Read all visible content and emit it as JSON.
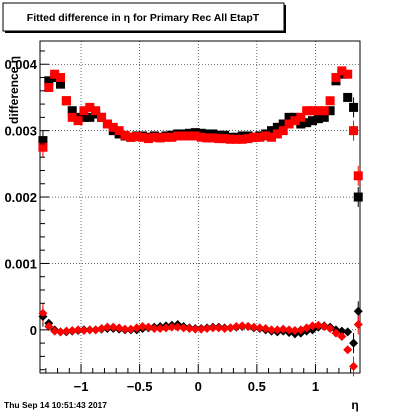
{
  "chart_data": {
    "type": "scatter",
    "title": "Fitted difference in  η for Primary Rec All EtapT",
    "xlabel": "η",
    "ylabel": "difference  η",
    "xlim": [
      -1.35,
      1.38
    ],
    "ylim": [
      -0.00065,
      0.00435
    ],
    "xticks": [
      -1,
      -0.5,
      0,
      0.5,
      1
    ],
    "xtick_labels": [
      "−1",
      "−0.5",
      "0",
      "0.5",
      "1"
    ],
    "yticks": [
      0,
      0.001,
      0.002,
      0.003,
      0.004
    ],
    "ytick_labels": [
      "0",
      "0.001",
      "0.002",
      "0.003",
      "0.004"
    ],
    "grid": true,
    "legend": "none",
    "timestamp": "Thu Sep 14 10:51:43 2017",
    "series": [
      {
        "color": "#000000",
        "marker": "square",
        "x": [
          -1.325,
          -1.275,
          -1.225,
          -1.175,
          -1.125,
          -1.075,
          -1.025,
          -0.975,
          -0.925,
          -0.875,
          -0.825,
          -0.775,
          -0.725,
          -0.675,
          -0.625,
          -0.575,
          -0.525,
          -0.475,
          -0.425,
          -0.375,
          -0.325,
          -0.275,
          -0.225,
          -0.175,
          -0.125,
          -0.075,
          -0.025,
          0.025,
          0.075,
          0.125,
          0.175,
          0.225,
          0.275,
          0.325,
          0.375,
          0.425,
          0.475,
          0.525,
          0.575,
          0.625,
          0.675,
          0.725,
          0.775,
          0.825,
          0.875,
          0.925,
          0.975,
          1.025,
          1.075,
          1.125,
          1.175,
          1.225,
          1.275,
          1.325,
          1.365
        ],
        "y": [
          0.00285,
          0.00375,
          0.0038,
          0.0037,
          0.00345,
          0.0033,
          0.0032,
          0.0032,
          0.0032,
          0.00325,
          0.0032,
          0.0031,
          0.003,
          0.00295,
          0.00292,
          0.0029,
          0.00292,
          0.00292,
          0.0029,
          0.00292,
          0.0029,
          0.00292,
          0.00293,
          0.00295,
          0.00295,
          0.00296,
          0.00297,
          0.00296,
          0.00295,
          0.00295,
          0.00293,
          0.00293,
          0.0029,
          0.0029,
          0.00292,
          0.00292,
          0.0029,
          0.00292,
          0.00295,
          0.003,
          0.00305,
          0.0031,
          0.0032,
          0.0032,
          0.0031,
          0.00312,
          0.00315,
          0.00318,
          0.0032,
          0.0033,
          0.00375,
          0.00385,
          0.0035,
          0.00335,
          0.002
        ]
      },
      {
        "color": "#ff0000",
        "marker": "square",
        "x": [
          -1.325,
          -1.275,
          -1.225,
          -1.175,
          -1.125,
          -1.075,
          -1.025,
          -0.975,
          -0.925,
          -0.875,
          -0.825,
          -0.775,
          -0.725,
          -0.675,
          -0.625,
          -0.575,
          -0.525,
          -0.475,
          -0.425,
          -0.375,
          -0.325,
          -0.275,
          -0.225,
          -0.175,
          -0.125,
          -0.075,
          -0.025,
          0.025,
          0.075,
          0.125,
          0.175,
          0.225,
          0.275,
          0.325,
          0.375,
          0.425,
          0.475,
          0.525,
          0.575,
          0.625,
          0.675,
          0.725,
          0.775,
          0.825,
          0.875,
          0.925,
          0.975,
          1.025,
          1.075,
          1.125,
          1.175,
          1.225,
          1.275,
          1.325,
          1.365
        ],
        "y": [
          0.00275,
          0.00365,
          0.00385,
          0.0038,
          0.00345,
          0.0032,
          0.00315,
          0.0033,
          0.00335,
          0.0033,
          0.0032,
          0.0031,
          0.00305,
          0.003,
          0.00293,
          0.0029,
          0.00291,
          0.0029,
          0.00288,
          0.0029,
          0.00289,
          0.0029,
          0.0029,
          0.00292,
          0.00292,
          0.00292,
          0.00292,
          0.0029,
          0.00289,
          0.00289,
          0.00288,
          0.00288,
          0.00287,
          0.00287,
          0.00287,
          0.00288,
          0.0029,
          0.0029,
          0.00292,
          0.0029,
          0.00295,
          0.003,
          0.0031,
          0.00315,
          0.0032,
          0.0033,
          0.0033,
          0.0033,
          0.0033,
          0.00345,
          0.0038,
          0.0039,
          0.00385,
          0.003,
          0.00232
        ]
      },
      {
        "color": "#000000",
        "marker": "diamond",
        "x": [
          -1.325,
          -1.275,
          -1.225,
          -1.175,
          -1.125,
          -1.075,
          -1.025,
          -0.975,
          -0.925,
          -0.875,
          -0.825,
          -0.775,
          -0.725,
          -0.675,
          -0.625,
          -0.575,
          -0.525,
          -0.475,
          -0.425,
          -0.375,
          -0.325,
          -0.275,
          -0.225,
          -0.175,
          -0.125,
          -0.075,
          -0.025,
          0.025,
          0.075,
          0.125,
          0.175,
          0.225,
          0.275,
          0.325,
          0.375,
          0.425,
          0.475,
          0.525,
          0.575,
          0.625,
          0.675,
          0.725,
          0.775,
          0.825,
          0.875,
          0.925,
          0.975,
          1.025,
          1.075,
          1.125,
          1.175,
          1.225,
          1.275,
          1.325,
          1.365
        ],
        "y": [
          0.0002,
          0.0001,
          0.0,
          -3e-05,
          -3e-05,
          -2e-05,
          -1e-05,
          0.0,
          0.0,
          0.0,
          1e-05,
          2e-05,
          2e-05,
          1e-05,
          0.0,
          0.0,
          0.0,
          2e-05,
          3e-05,
          4e-05,
          5e-05,
          6e-05,
          7e-05,
          8e-05,
          5e-05,
          3e-05,
          2e-05,
          2e-05,
          3e-05,
          4e-05,
          4e-05,
          3e-05,
          3e-05,
          4e-05,
          5e-05,
          5e-05,
          3e-05,
          2e-05,
          0.0,
          -2e-05,
          -3e-05,
          -2e-05,
          -4e-05,
          -6e-05,
          -5e-05,
          -2e-05,
          0.0,
          4e-05,
          6e-05,
          4e-05,
          0.0,
          -2e-05,
          -3e-05,
          -0.0002,
          0.00028
        ]
      },
      {
        "color": "#ff0000",
        "marker": "diamond",
        "x": [
          -1.325,
          -1.275,
          -1.225,
          -1.175,
          -1.125,
          -1.075,
          -1.025,
          -0.975,
          -0.925,
          -0.875,
          -0.825,
          -0.775,
          -0.725,
          -0.675,
          -0.625,
          -0.575,
          -0.525,
          -0.475,
          -0.425,
          -0.375,
          -0.325,
          -0.275,
          -0.225,
          -0.175,
          -0.125,
          -0.075,
          -0.025,
          0.025,
          0.075,
          0.125,
          0.175,
          0.225,
          0.275,
          0.325,
          0.375,
          0.425,
          0.475,
          0.525,
          0.575,
          0.625,
          0.675,
          0.725,
          0.775,
          0.825,
          0.875,
          0.925,
          0.975,
          1.025,
          1.075,
          1.125,
          1.175,
          1.225,
          1.275,
          1.325,
          1.365
        ],
        "y": [
          0.00025,
          5e-05,
          -2e-05,
          -3e-05,
          -2e-05,
          -1e-05,
          0.0,
          -1e-05,
          0.0,
          0.0,
          2e-05,
          4e-05,
          4e-05,
          3e-05,
          1e-05,
          1e-05,
          3e-05,
          5e-05,
          4e-05,
          2e-05,
          2e-05,
          3e-05,
          4e-05,
          4e-05,
          3e-05,
          2e-05,
          1e-05,
          1e-05,
          2e-05,
          3e-05,
          3e-05,
          2e-05,
          3e-05,
          5e-05,
          6e-05,
          5e-05,
          4e-05,
          3e-05,
          2e-05,
          0.0,
          0.0,
          1e-05,
          0.0,
          -1e-05,
          0.0,
          3e-05,
          6e-05,
          7e-05,
          5e-05,
          2e-05,
          -5e-05,
          -0.0001,
          -0.0003,
          -0.00055,
          8e-05
        ]
      }
    ]
  }
}
